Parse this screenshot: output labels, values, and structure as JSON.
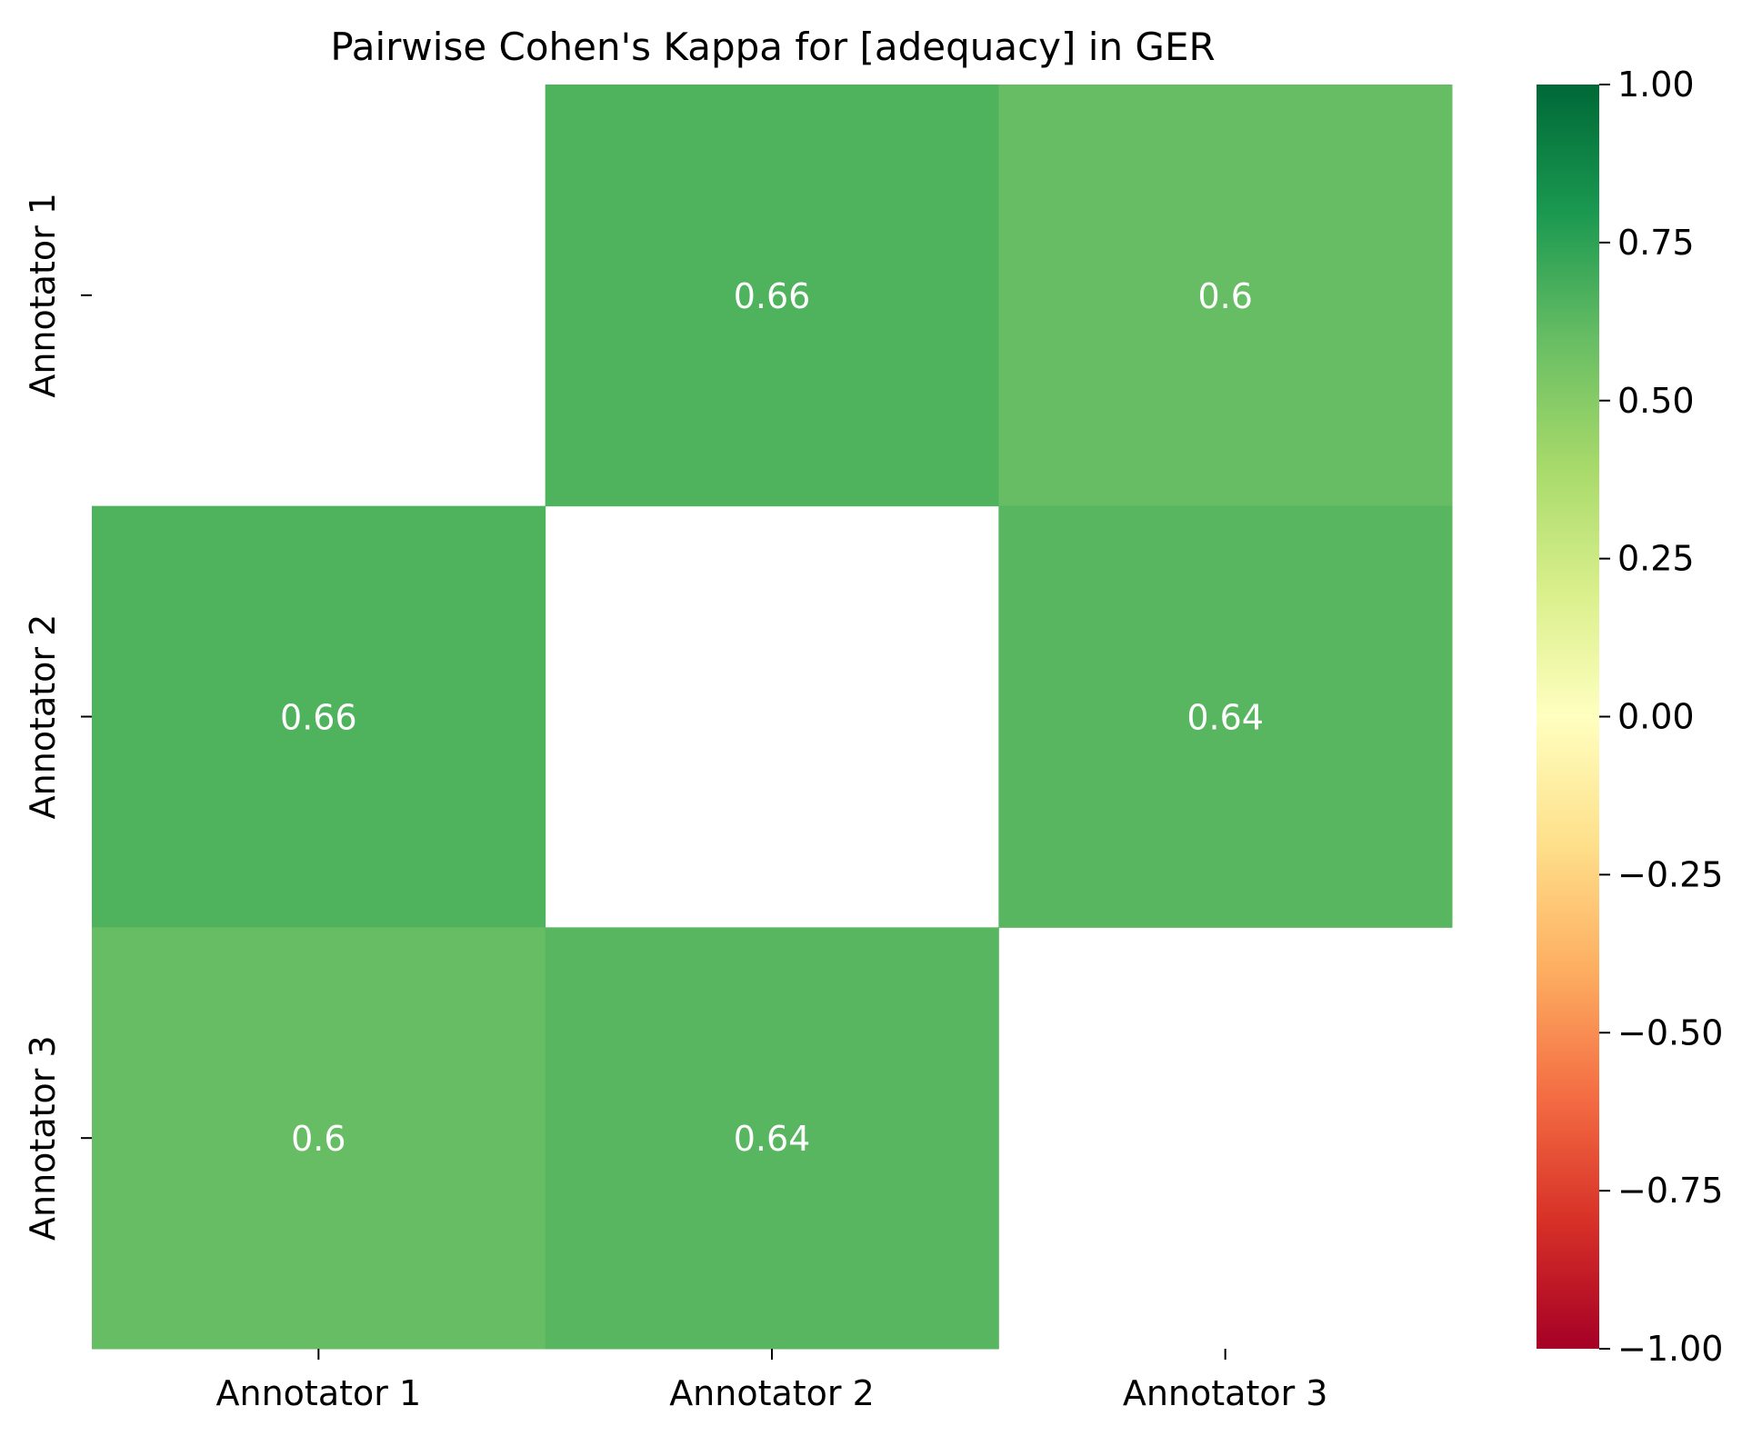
{
  "chart_data": {
    "type": "heatmap",
    "title": "Pairwise Cohen's Kappa for [adequacy] in GER",
    "xlabel": "",
    "ylabel": "",
    "x_categories": [
      "Annotator 1",
      "Annotator 2",
      "Annotator 3"
    ],
    "y_categories": [
      "Annotator 1",
      "Annotator 2",
      "Annotator 3"
    ],
    "values": [
      [
        null,
        0.66,
        0.6
      ],
      [
        0.66,
        null,
        0.64
      ],
      [
        0.6,
        0.64,
        null
      ]
    ],
    "value_labels": [
      [
        null,
        "0.66",
        "0.6"
      ],
      [
        "0.66",
        null,
        "0.64"
      ],
      [
        "0.6",
        "0.64",
        null
      ]
    ],
    "colorbar": {
      "colormap": "RdYlGn",
      "vmin": -1.0,
      "vmax": 1.0,
      "ticks": [
        1.0,
        0.75,
        0.5,
        0.25,
        0.0,
        -0.25,
        -0.5,
        -0.75,
        -1.0
      ],
      "tick_labels": [
        "1.00",
        "0.75",
        "0.50",
        "0.25",
        "0.00",
        "−0.25",
        "−0.50",
        "−0.75",
        "−1.00"
      ]
    },
    "annotation_color": "#ffffff",
    "grid": false,
    "legend": "colorbar-right"
  }
}
